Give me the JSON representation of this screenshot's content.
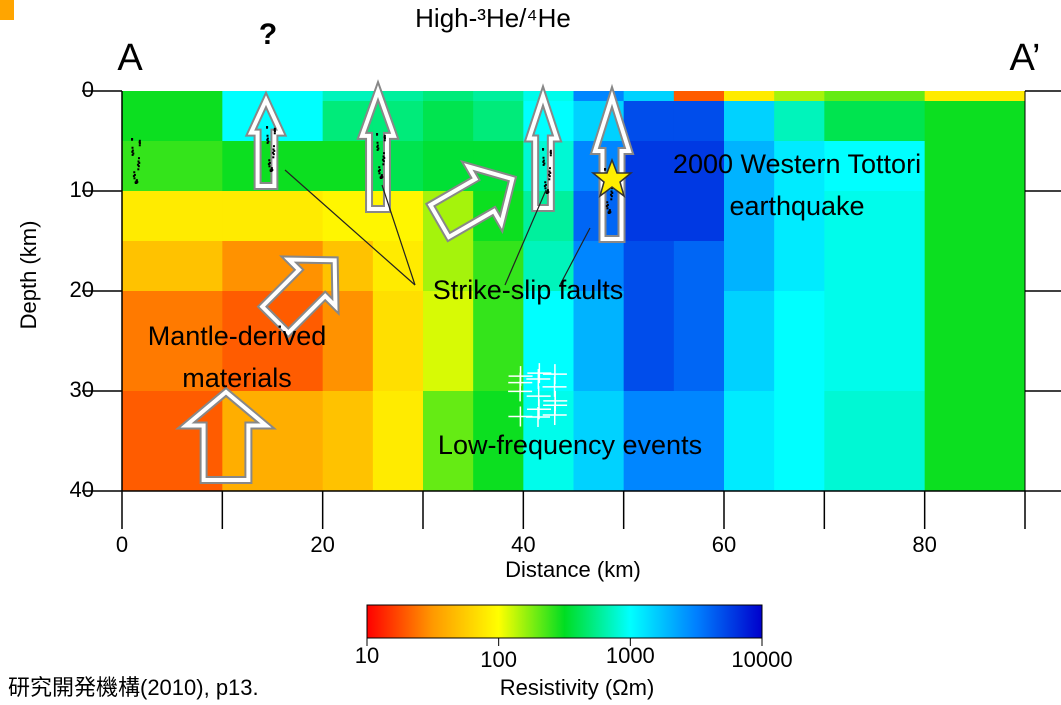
{
  "chart_data": {
    "type": "heatmap",
    "title": "High-³He/⁴He",
    "start_label": "A",
    "end_label": "A’",
    "question": "?",
    "xlabel": "Distance (km)",
    "ylabel": "Depth (km)",
    "xlim": [
      0,
      90
    ],
    "ylim": [
      0,
      40
    ],
    "xticks": [
      0,
      20,
      40,
      60,
      80
    ],
    "xminor": [
      10,
      30,
      50,
      70,
      90
    ],
    "yticks": [
      0,
      10,
      20,
      30,
      40
    ],
    "x_edges": [
      0,
      10,
      20,
      25,
      30,
      35,
      40,
      45,
      50,
      55,
      60,
      65,
      70,
      80,
      90
    ],
    "depth_edges": [
      0,
      1,
      5,
      10,
      15,
      20,
      30,
      40
    ],
    "values": [
      [
        300,
        1000,
        700,
        600,
        500,
        600,
        900,
        3000,
        1500,
        20,
        80,
        150,
        200,
        80
      ],
      [
        300,
        1000,
        500,
        500,
        400,
        500,
        1000,
        1500,
        5000,
        5000,
        1500,
        700,
        400,
        300
      ],
      [
        250,
        300,
        300,
        400,
        350,
        350,
        800,
        3000,
        6000,
        6000,
        2000,
        1200,
        1000,
        300
      ],
      [
        80,
        80,
        90,
        90,
        150,
        300,
        600,
        4000,
        6000,
        6000,
        2000,
        1200,
        900,
        300
      ],
      [
        50,
        30,
        50,
        80,
        150,
        250,
        700,
        3000,
        5000,
        4000,
        2000,
        1200,
        900,
        300
      ],
      [
        25,
        20,
        30,
        70,
        120,
        250,
        1000,
        2000,
        5000,
        4000,
        1500,
        1000,
        900,
        300
      ],
      [
        20,
        40,
        50,
        80,
        200,
        300,
        900,
        1500,
        3000,
        3000,
        1200,
        1000,
        800,
        300
      ]
    ],
    "colorbar": {
      "label": "Resistivity (Ωm)",
      "log": true,
      "lim": [
        10,
        10000
      ],
      "ticks": [
        10,
        100,
        1000,
        10000
      ],
      "colors": [
        "#ff0000",
        "#ff9900",
        "#ffff00",
        "#00dd22",
        "#00ffff",
        "#0080ff",
        "#0000cc"
      ]
    },
    "annotations": {
      "earthquake": [
        "2000 Western Tottori",
        "earthquake"
      ],
      "faults": [
        "Strike-slip faults"
      ],
      "mantle": [
        "Mantle-derived",
        "materials"
      ],
      "lfe": [
        "Low-frequency events"
      ]
    },
    "source": "研究開発機構(2010), p13."
  }
}
